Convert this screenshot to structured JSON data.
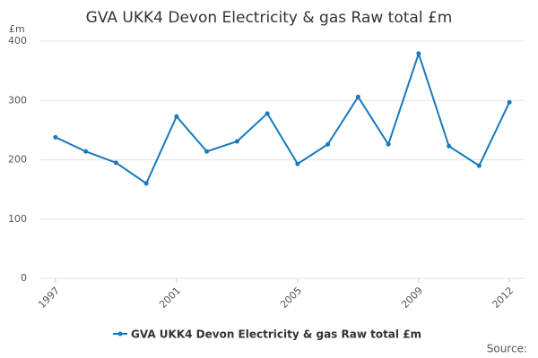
{
  "chart_data": {
    "type": "line",
    "title": "GVA UKK4 Devon Electricity & gas Raw total £m",
    "y_label": "£m",
    "x": [
      1997,
      1998,
      1999,
      2000,
      2001,
      2002,
      2003,
      2004,
      2005,
      2006,
      2007,
      2008,
      2009,
      2010,
      2011,
      2012
    ],
    "series": [
      {
        "name": "GVA UKK4 Devon Electricity & gas Raw total £m",
        "color": "#167abc",
        "values": [
          238,
          214,
          195,
          160,
          273,
          214,
          231,
          278,
          193,
          226,
          306,
          226,
          379,
          223,
          190,
          297
        ]
      }
    ],
    "xlim": [
      1996.5,
      2012.5
    ],
    "xticks": [
      1997,
      2001,
      2005,
      2009,
      2012
    ],
    "ylim": [
      0,
      400
    ],
    "yticks": [
      0,
      100,
      200,
      300,
      400
    ],
    "grid": true,
    "source": "Source:"
  }
}
